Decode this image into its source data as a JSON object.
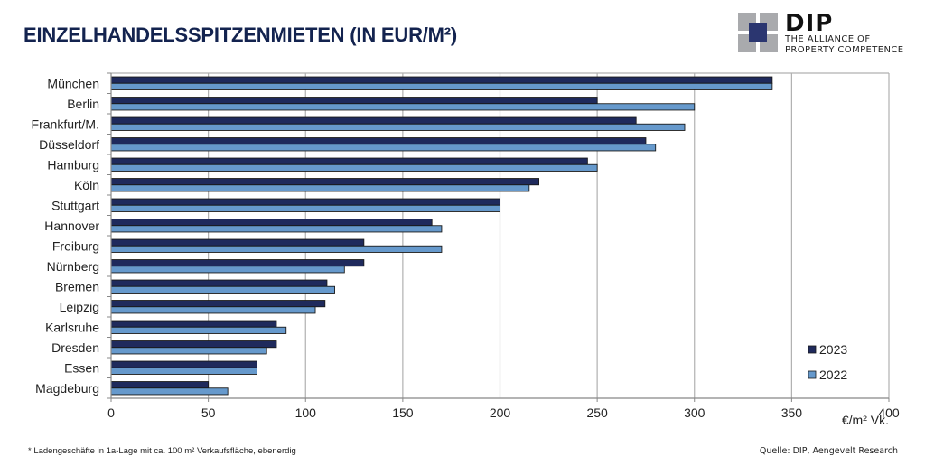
{
  "header": {
    "title": "EINZELHANDELSSPITZENMIETEN (IN EUR/M²)"
  },
  "logo": {
    "name": "DIP",
    "tagline_1": "THE ALLIANCE OF",
    "tagline_2": "PROPERTY COMPETENCE"
  },
  "footer": {
    "footnote": "* Ladengeschäfte in 1a-Lage mit ca. 100 m² Verkaufsfläche, ebenerdig",
    "source": "Quelle: DIP, Aengevelt Research"
  },
  "colors": {
    "series_2023": "#1f2a5c",
    "series_2022": "#6699cc",
    "title": "#13234f",
    "grid": "#b0b0b0"
  },
  "chart_data": {
    "type": "bar",
    "orientation": "horizontal",
    "title": "EINZELHANDELSSPITZENMIETEN (IN EUR/M²)",
    "xlabel": "€/m² Vk.",
    "ylabel": "",
    "xlim": [
      0,
      400
    ],
    "xticks": [
      0,
      50,
      100,
      150,
      200,
      250,
      300,
      350,
      400
    ],
    "grid": "vertical",
    "legend_position": "bottom-right",
    "categories": [
      "München",
      "Berlin",
      "Frankfurt/M.",
      "Düsseldorf",
      "Hamburg",
      "Köln",
      "Stuttgart",
      "Hannover",
      "Freiburg",
      "Nürnberg",
      "Bremen",
      "Leipzig",
      "Karlsruhe",
      "Dresden",
      "Essen",
      "Magdeburg"
    ],
    "series": [
      {
        "name": "2023",
        "color": "#1f2a5c",
        "values": [
          340,
          250,
          270,
          275,
          245,
          220,
          200,
          165,
          130,
          130,
          111,
          110,
          85,
          85,
          75,
          50
        ]
      },
      {
        "name": "2022",
        "color": "#6699cc",
        "values": [
          340,
          300,
          295,
          280,
          250,
          215,
          200,
          170,
          170,
          120,
          115,
          105,
          90,
          80,
          75,
          60
        ]
      }
    ]
  }
}
